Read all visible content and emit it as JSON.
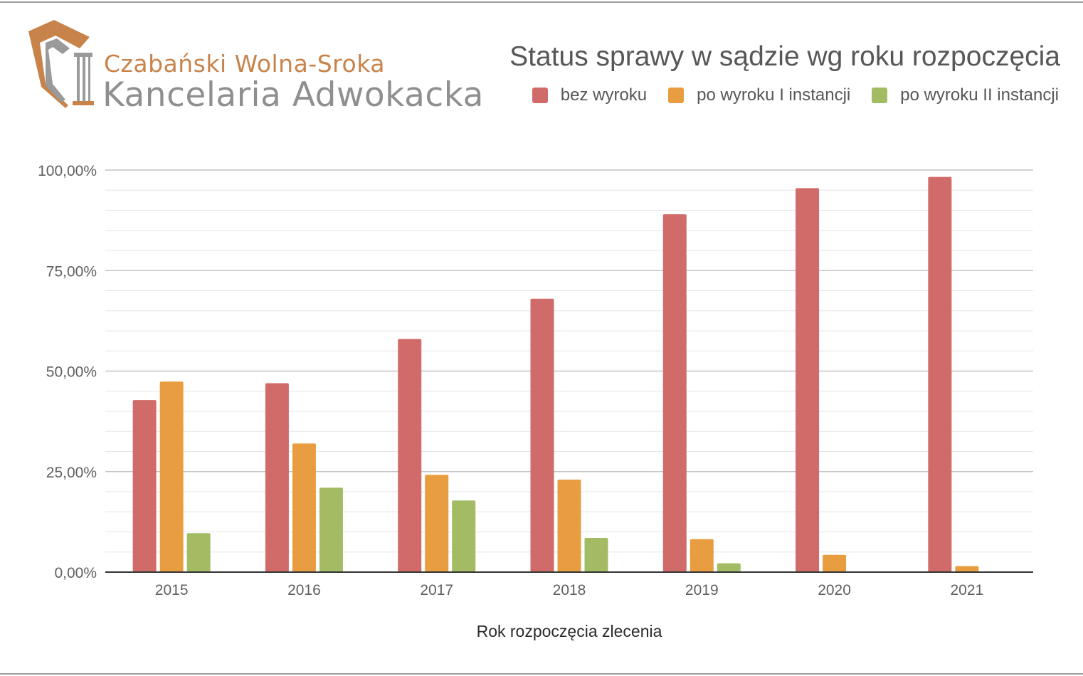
{
  "logo": {
    "line1": "Czabański Wolna-Sroka",
    "line2": "Kancelaria Adwokacka"
  },
  "colors": {
    "bez_wyroku": "#d16b69",
    "po_wyroku_I": "#e99d41",
    "po_wyroku_II": "#a3bb62",
    "logo_accent": "#c8834a",
    "logo_gray": "#8f8f8f"
  },
  "chart_data": {
    "type": "bar",
    "title": "Status sprawy w sądzie wg roku rozpoczęcia",
    "xlabel": "Rok rozpoczęcia zlecenia",
    "ylabel": "",
    "ylim": [
      0,
      100
    ],
    "yticks": [
      "0,00%",
      "25,00%",
      "50,00%",
      "75,00%",
      "100,00%"
    ],
    "grid": true,
    "legend_position": "top-right",
    "categories": [
      "2015",
      "2016",
      "2017",
      "2018",
      "2019",
      "2020",
      "2021"
    ],
    "series": [
      {
        "name": "bez wyroku",
        "color": "#d16b69",
        "values": [
          42.8,
          47.0,
          58.0,
          68.0,
          89.0,
          95.5,
          98.3
        ]
      },
      {
        "name": "po wyroku I instancji",
        "color": "#e99d41",
        "values": [
          47.4,
          32.0,
          24.2,
          23.0,
          8.2,
          4.3,
          1.5
        ]
      },
      {
        "name": "po wyroku II instancji",
        "color": "#a3bb62",
        "values": [
          9.7,
          21.0,
          17.8,
          8.5,
          2.2,
          0.0,
          0.0
        ]
      }
    ]
  }
}
